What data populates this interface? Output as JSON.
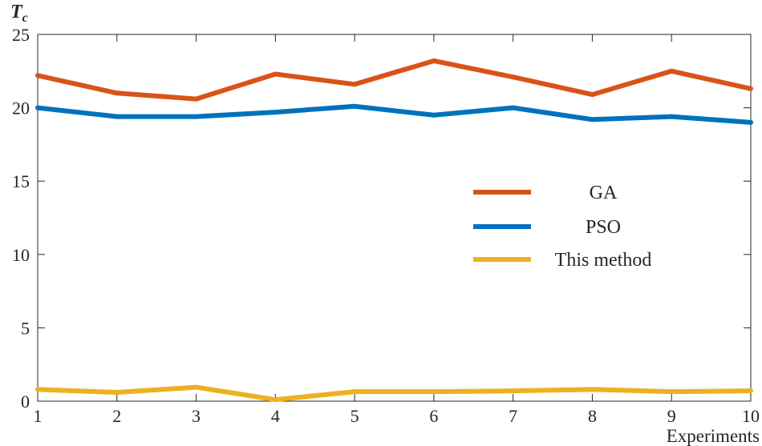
{
  "chart_data": {
    "type": "line",
    "title": "",
    "ylabel": "T",
    "ylabel_subscript": "c",
    "xlabel": "Experiments",
    "x": [
      1,
      2,
      3,
      4,
      5,
      6,
      7,
      8,
      9,
      10
    ],
    "x_tick_labels": [
      "1",
      "2",
      "3",
      "4",
      "5",
      "6",
      "7",
      "8",
      "9",
      "10"
    ],
    "y_tick_labels": [
      "0",
      "5",
      "10",
      "15",
      "20",
      "25"
    ],
    "xlim": [
      1,
      10
    ],
    "ylim": [
      0,
      25
    ],
    "grid": false,
    "legend_position": "center-right",
    "series": [
      {
        "name": "GA",
        "color": "#D95319",
        "values": [
          22.2,
          21.0,
          20.6,
          22.3,
          21.6,
          23.2,
          22.1,
          20.9,
          22.5,
          21.3
        ]
      },
      {
        "name": "PSO",
        "color": "#0072BD",
        "values": [
          20.0,
          19.4,
          19.4,
          19.7,
          20.1,
          19.5,
          20.0,
          19.2,
          19.4,
          19.0
        ]
      },
      {
        "name": "This method",
        "color": "#EDB120",
        "values": [
          0.8,
          0.6,
          0.95,
          0.1,
          0.65,
          0.65,
          0.7,
          0.8,
          0.65,
          0.7
        ]
      }
    ]
  }
}
